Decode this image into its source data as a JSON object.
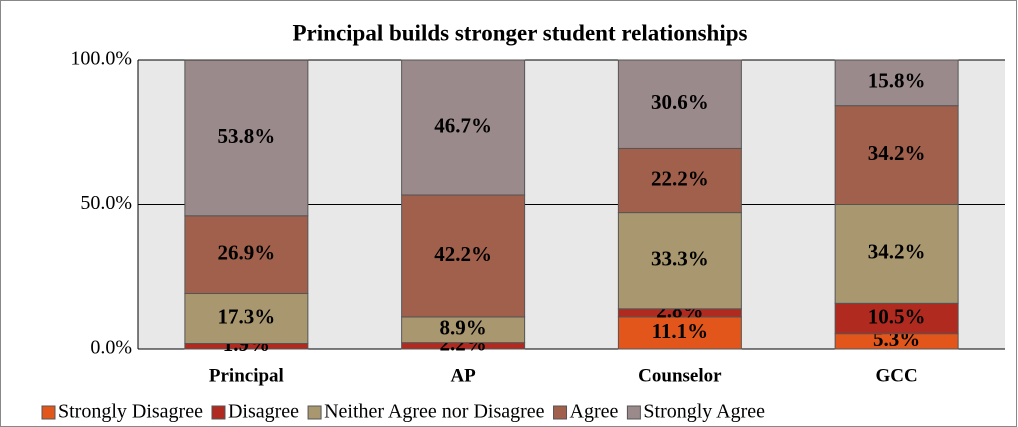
{
  "chart_data": {
    "type": "stacked_bar",
    "title": "Principal builds stronger student relationships",
    "categories": [
      "Principal",
      "AP",
      "Counselor",
      "GCC"
    ],
    "series": [
      {
        "name": "Strongly Disagree",
        "color": "#e2561c",
        "values": [
          null,
          null,
          11.1,
          5.3
        ],
        "value_labels": [
          null,
          null,
          "11.1%",
          "5.3%"
        ]
      },
      {
        "name": "Disagree",
        "color": "#b02a20",
        "values": [
          1.9,
          2.2,
          2.8,
          10.5
        ],
        "value_labels": [
          "1.9%",
          "2.2%",
          "2.8%",
          "10.5%"
        ]
      },
      {
        "name": "Neither Agree nor Disagree",
        "color": "#a8976f",
        "values": [
          17.3,
          8.9,
          33.3,
          34.2
        ],
        "value_labels": [
          "17.3%",
          "8.9%",
          "33.3%",
          "34.2%"
        ]
      },
      {
        "name": "Agree",
        "color": "#a0604c",
        "values": [
          26.9,
          42.2,
          22.2,
          34.2
        ],
        "value_labels": [
          "26.9%",
          "42.2%",
          "22.2%",
          "34.2%"
        ]
      },
      {
        "name": "Strongly Agree",
        "color": "#9b8a8b",
        "values": [
          53.8,
          46.7,
          30.6,
          15.8
        ],
        "value_labels": [
          "53.8%",
          "46.7%",
          "30.6%",
          "15.8%"
        ]
      }
    ],
    "ylim": [
      0,
      100
    ],
    "yticks": [
      {
        "value": 0,
        "label": "0.0%"
      },
      {
        "value": 50,
        "label": "50.0%"
      },
      {
        "value": 100,
        "label": "100.0%"
      }
    ],
    "grid": true,
    "legend": "bottom"
  }
}
